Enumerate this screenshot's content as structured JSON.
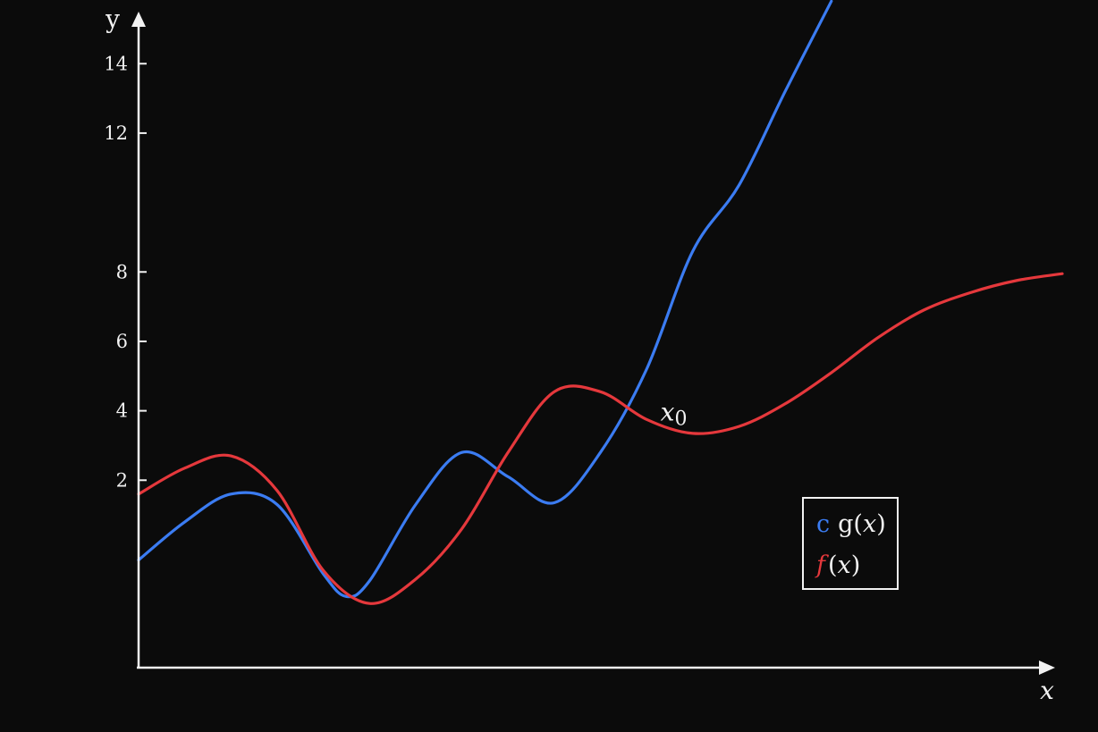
{
  "chart_data": {
    "type": "line",
    "xlabel": "x",
    "ylabel": "y",
    "xlim": [
      0,
      10
    ],
    "ylim": [
      -3.4,
      15.5
    ],
    "yticks": [
      2,
      4,
      6,
      8,
      12,
      14
    ],
    "grid": false,
    "legend_position": "bottom-right",
    "series": [
      {
        "name": "g(x)",
        "legend_marker": "c",
        "color": "#3b7cf2",
        "x": [
          0,
          0.5,
          1.0,
          1.5,
          2.0,
          2.25,
          2.5,
          3.0,
          3.5,
          4.0,
          4.5,
          5.0,
          5.5,
          6.0,
          6.5,
          7.0,
          7.5
        ],
        "y": [
          -0.3,
          0.8,
          1.6,
          1.3,
          -0.7,
          -1.35,
          -0.9,
          1.3,
          2.8,
          2.1,
          1.35,
          2.8,
          5.2,
          8.6,
          10.5,
          13.2,
          15.8
        ]
      },
      {
        "name": "f(x)",
        "legend_marker": "f",
        "color": "#e5383c",
        "x": [
          0,
          0.5,
          1.0,
          1.5,
          2.0,
          2.5,
          3.0,
          3.5,
          4.0,
          4.5,
          5.0,
          5.5,
          6.0,
          6.5,
          7.0,
          7.5,
          8.0,
          8.5,
          9.0,
          9.5,
          10.0
        ],
        "y": [
          1.6,
          2.35,
          2.7,
          1.7,
          -0.6,
          -1.55,
          -0.85,
          0.6,
          2.8,
          4.55,
          4.55,
          3.75,
          3.35,
          3.55,
          4.2,
          5.1,
          6.1,
          6.9,
          7.4,
          7.75,
          7.95
        ]
      }
    ],
    "annotations": [
      {
        "text": "x",
        "subscript": "0",
        "x": 5.65,
        "y": 3.85
      }
    ],
    "legend": [
      {
        "marker": "c",
        "label_prefix": "g(",
        "label_var": "x",
        "label_suffix": ")"
      },
      {
        "marker": "f",
        "label_prefix": "(",
        "label_var": "x",
        "label_suffix": ")"
      }
    ]
  }
}
